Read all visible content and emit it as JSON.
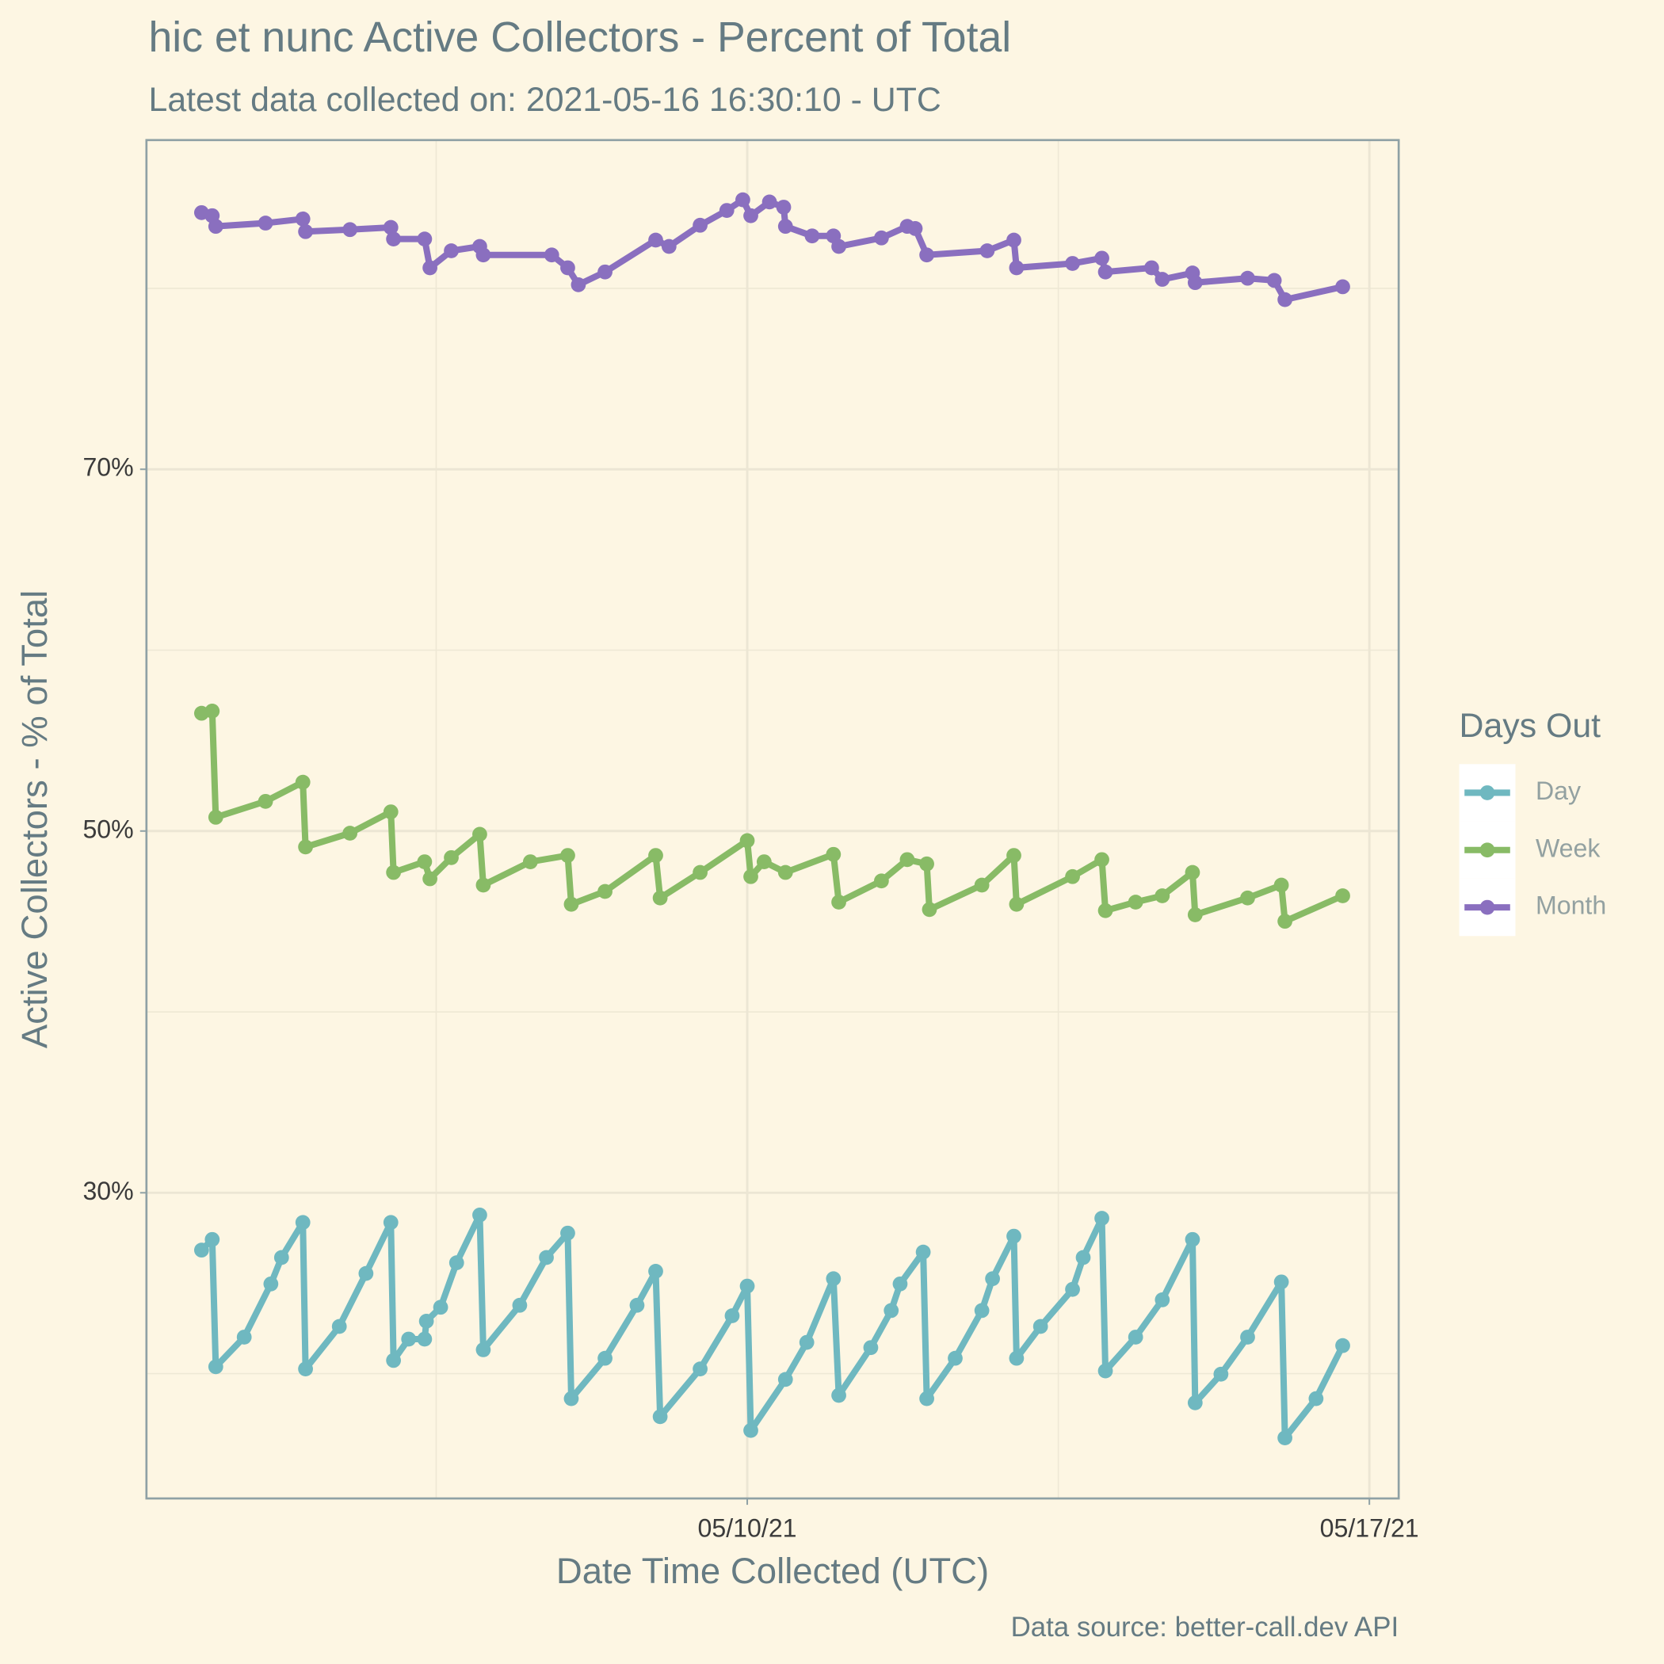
{
  "chart_data": {
    "type": "line",
    "title": "hic et nunc Active Collectors - Percent of Total",
    "subtitle": "Latest data collected on: 2021-05-16 16:30:10  - UTC",
    "x_label": "Date Time Collected (UTC)",
    "y_label": "Active Collectors - % of Total",
    "caption": "Data source: better-call.dev API",
    "legend_title": "Days Out",
    "legend": "right",
    "grid": true,
    "markers": true,
    "xlim": [
      18750.24,
      18764.33
    ],
    "xticks": [
      {
        "value": 18757,
        "label": "05/10/21"
      },
      {
        "value": 18764,
        "label": "05/17/21"
      }
    ],
    "ylim": [
      13.1,
      88.2
    ],
    "yticks": [
      {
        "value": 30,
        "label": "30%"
      },
      {
        "value": 50,
        "label": "50%"
      },
      {
        "value": 70,
        "label": "70%"
      }
    ],
    "series": [
      {
        "name": "Day",
        "color": "#6fb8c0",
        "x": [
          18750.86,
          18750.98,
          18751.02,
          18751.34,
          18751.64,
          18751.76,
          18752.0,
          18752.03,
          18752.41,
          18752.71,
          18752.99,
          18753.02,
          18753.19,
          18753.37,
          18753.39,
          18753.55,
          18753.73,
          18753.99,
          18754.03,
          18754.44,
          18754.74,
          18754.98,
          18755.02,
          18755.4,
          18755.76,
          18755.97,
          18756.02,
          18756.47,
          18756.83,
          18757.0,
          18757.04,
          18757.43,
          18757.67,
          18757.97,
          18758.03,
          18758.39,
          18758.62,
          18758.72,
          18758.98,
          18759.02,
          18759.34,
          18759.64,
          18759.76,
          18760.0,
          18760.03,
          18760.3,
          18760.66,
          18760.78,
          18760.99,
          18761.03,
          18761.37,
          18761.67,
          18762.01,
          18762.04,
          18762.33,
          18762.63,
          18763.01,
          18763.05,
          18763.4,
          18763.7
        ],
        "values": [
          26.83,
          27.42,
          20.38,
          22.02,
          24.96,
          26.42,
          28.36,
          20.26,
          22.61,
          25.54,
          28.36,
          20.73,
          21.91,
          21.91,
          22.9,
          23.67,
          26.13,
          28.77,
          21.32,
          23.78,
          26.42,
          27.77,
          18.62,
          20.85,
          23.78,
          25.66,
          17.62,
          20.26,
          23.2,
          24.84,
          16.86,
          19.68,
          21.73,
          25.25,
          18.8,
          21.44,
          23.49,
          24.96,
          26.72,
          18.62,
          20.85,
          23.49,
          25.25,
          27.6,
          20.85,
          22.61,
          24.66,
          26.42,
          28.59,
          20.15,
          22.02,
          24.08,
          27.42,
          18.39,
          19.97,
          22.02,
          25.07,
          16.45,
          18.62,
          21.55
        ]
      },
      {
        "name": "Week",
        "color": "#88bb66",
        "x": [
          18750.86,
          18750.98,
          18751.02,
          18751.58,
          18752.0,
          18752.03,
          18752.53,
          18752.99,
          18753.02,
          18753.37,
          18753.43,
          18753.67,
          18753.99,
          18754.03,
          18754.56,
          18754.98,
          18755.02,
          18755.4,
          18755.97,
          18756.02,
          18756.47,
          18757.0,
          18757.04,
          18757.19,
          18757.43,
          18757.97,
          18758.03,
          18758.51,
          18758.8,
          18759.02,
          18759.05,
          18759.64,
          18760.0,
          18760.03,
          18760.66,
          18760.99,
          18761.03,
          18761.37,
          18761.67,
          18762.01,
          18762.04,
          18762.63,
          18763.01,
          18763.05,
          18763.7
        ],
        "values": [
          56.51,
          56.63,
          50.76,
          51.64,
          52.7,
          49.12,
          49.88,
          51.06,
          47.71,
          48.3,
          47.36,
          48.53,
          49.82,
          47.01,
          48.3,
          48.65,
          45.95,
          46.66,
          48.65,
          46.3,
          47.71,
          49.47,
          47.48,
          48.3,
          47.71,
          48.71,
          46.07,
          47.24,
          48.42,
          48.18,
          45.66,
          47.01,
          48.65,
          45.95,
          47.48,
          48.42,
          45.6,
          46.07,
          46.42,
          47.71,
          45.37,
          46.3,
          47.01,
          45.01,
          46.42
        ]
      },
      {
        "name": "Month",
        "color": "#8a6fbf",
        "x": [
          18750.86,
          18750.98,
          18751.02,
          18751.58,
          18752.0,
          18752.03,
          18752.53,
          18752.99,
          18753.02,
          18753.37,
          18753.43,
          18753.67,
          18753.99,
          18754.03,
          18754.8,
          18754.98,
          18755.1,
          18755.4,
          18755.97,
          18756.12,
          18756.47,
          18756.77,
          18756.95,
          18757.04,
          18757.25,
          18757.41,
          18757.43,
          18757.73,
          18757.97,
          18758.03,
          18758.51,
          18758.8,
          18758.89,
          18759.02,
          18759.7,
          18760.0,
          18760.03,
          18760.66,
          18760.99,
          18761.03,
          18761.55,
          18761.67,
          18762.01,
          18762.04,
          18762.63,
          18762.93,
          18763.05,
          18763.7
        ],
        "values": [
          84.19,
          84.02,
          83.43,
          83.61,
          83.84,
          83.14,
          83.25,
          83.37,
          82.73,
          82.73,
          81.14,
          82.08,
          82.32,
          81.85,
          81.85,
          81.14,
          80.2,
          80.91,
          82.67,
          82.32,
          83.49,
          84.31,
          84.9,
          84.02,
          84.78,
          84.49,
          83.43,
          82.9,
          82.9,
          82.32,
          82.79,
          83.43,
          83.31,
          81.85,
          82.08,
          82.67,
          81.14,
          81.38,
          81.67,
          80.91,
          81.14,
          80.5,
          80.85,
          80.32,
          80.56,
          80.44,
          79.38,
          80.09
        ]
      }
    ]
  }
}
